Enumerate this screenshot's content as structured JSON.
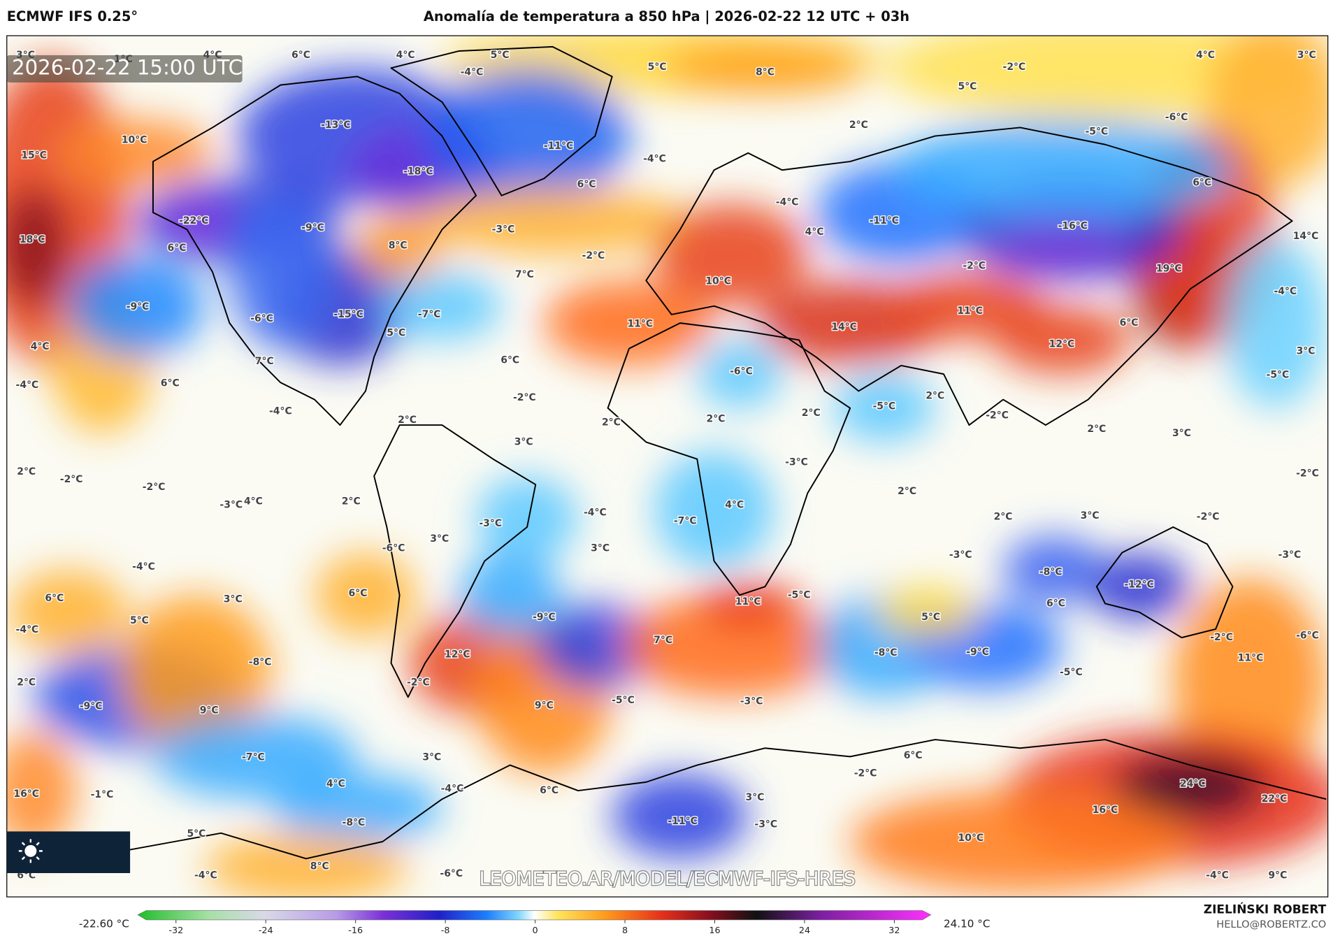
{
  "header": {
    "model": "ECMWF IFS 0.25°",
    "title": "Anomalía de temperatura a 850 hPa | 2026-02-22 12 UTC + 03h"
  },
  "timestamp": "2026-02-22 15:00 UTC",
  "watermark": "LEOMETEO.AR/MODEL/ECMWF-IFS-HRES",
  "colorbar": {
    "min_label": "-22.60 °C",
    "max_label": "24.10 °C",
    "ticks": [
      -32,
      -24,
      -16,
      -8,
      0,
      8,
      16,
      24,
      32
    ]
  },
  "credits": {
    "author": "ZIELIŃSKI ROBERT",
    "email": "HELLO@ROBERTZ.CO"
  },
  "map_labels": [
    "3°C",
    "1°C",
    "6°C",
    "4°C",
    "5°C",
    "-4°C",
    "4°C",
    "5°C",
    "8°C",
    "-2°C",
    "5°C",
    "4°C",
    "3°C",
    "-13°C",
    "-11°C",
    "-18°C",
    "-4°C",
    "2°C",
    "-5°C",
    "-6°C",
    "15°C",
    "10°C",
    "6°C",
    "-4°C",
    "6°C",
    "-22°C",
    "-9°C",
    "8°C",
    "-3°C",
    "4°C",
    "-11°C",
    "-16°C",
    "14°C",
    "18°C",
    "6°C",
    "-2°C",
    "7°C",
    "10°C",
    "-2°C",
    "19°C",
    "-4°C",
    "-9°C",
    "-6°C",
    "-15°C",
    "-7°C",
    "11°C",
    "14°C",
    "11°C",
    "6°C",
    "4°C",
    "5°C",
    "12°C",
    "3°C",
    "7°C",
    "6°C",
    "-6°C",
    "-5°C",
    "-4°C",
    "6°C",
    "-2°C",
    "-5°C",
    "2°C",
    "-4°C",
    "2°C",
    "2°C",
    "2°C",
    "2°C",
    "-2°C",
    "3°C",
    "2°C",
    "3°C",
    "2°C",
    "-2°C",
    "-3°C",
    "-2°C",
    "-2°C",
    "2°C",
    "-3°C",
    "4°C",
    "2°C",
    "4°C",
    "-4°C",
    "-3°C",
    "-7°C",
    "2°C",
    "3°C",
    "-2°C",
    "-6°C",
    "3°C",
    "3°C",
    "-3°C",
    "-3°C",
    "-4°C",
    "-8°C",
    "-12°C",
    "6°C",
    "3°C",
    "6°C",
    "11°C",
    "-5°C",
    "6°C",
    "5°C",
    "-9°C",
    "5°C",
    "-4°C",
    "7°C",
    "-2°C",
    "-6°C",
    "-8°C",
    "12°C",
    "-8°C",
    "-9°C",
    "11°C",
    "2°C",
    "-2°C",
    "-5°C",
    "-9°C",
    "9°C",
    "9°C",
    "-5°C",
    "-3°C",
    "-7°C",
    "3°C",
    "6°C",
    "4°C",
    "-4°C",
    "6°C",
    "3°C",
    "-2°C",
    "24°C",
    "16°C",
    "-1°C",
    "22°C",
    "16°C",
    "-8°C",
    "-11°C",
    "-3°C",
    "5°C",
    "10°C",
    "6°C",
    "-4°C",
    "8°C",
    "-6°C",
    "-4°C",
    "9°C"
  ]
}
